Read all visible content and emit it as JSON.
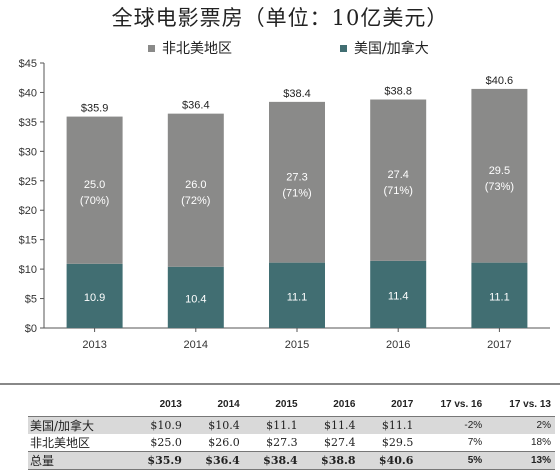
{
  "title": "全球电影票房（单位：10亿美元）",
  "colors": {
    "non_na": "#8a8a89",
    "na": "#416e72",
    "axis": "#555555",
    "grid": "#cccccc"
  },
  "chart_data": {
    "type": "bar",
    "stacked": true,
    "title": "全球电影票房（单位：10亿美元）",
    "categories": [
      "2013",
      "2014",
      "2015",
      "2016",
      "2017"
    ],
    "series": [
      {
        "name": "美国/加拿大",
        "color": "#416e72",
        "values": [
          10.9,
          10.4,
          11.1,
          11.4,
          11.1
        ],
        "labels": [
          "10.9",
          "10.4",
          "11.1",
          "11.4",
          "11.1"
        ]
      },
      {
        "name": "非北美地区",
        "color": "#8a8a89",
        "values": [
          25.0,
          26.0,
          27.3,
          27.4,
          29.5
        ],
        "labels": [
          "25.0",
          "26.0",
          "27.3",
          "27.4",
          "29.5"
        ],
        "share_labels": [
          "(70%)",
          "(72%)",
          "(71%)",
          "(71%)",
          "(73%)"
        ]
      }
    ],
    "totals": [
      "$35.9",
      "$36.4",
      "$38.4",
      "$38.8",
      "$40.6"
    ],
    "total_values": [
      35.9,
      36.4,
      38.4,
      38.8,
      40.6
    ],
    "ylim": [
      0,
      45
    ],
    "yticks": [
      "$0",
      "$5",
      "$10",
      "$15",
      "$20",
      "$25",
      "$30",
      "$35",
      "$40",
      "$45"
    ],
    "ytick_values": [
      0,
      5,
      10,
      15,
      20,
      25,
      30,
      35,
      40,
      45
    ],
    "xlabel": "",
    "ylabel": "",
    "grid": false,
    "legend": {
      "placement": "top",
      "entries": [
        {
          "label": "非北美地区",
          "color": "#8a8a89"
        },
        {
          "label": "美国/加拿大",
          "color": "#416e72"
        }
      ]
    }
  },
  "table": {
    "headers": [
      "",
      "2013",
      "2014",
      "2015",
      "2016",
      "2017",
      "17 vs. 16",
      "17 vs. 13"
    ],
    "rows": [
      [
        "美国/加拿大",
        "$10.9",
        "$10.4",
        "$11.1",
        "$11.4",
        "$11.1",
        "-2%",
        "2%"
      ],
      [
        "非北美地区",
        "$25.0",
        "$26.0",
        "$27.3",
        "$27.4",
        "$29.5",
        "7%",
        "18%"
      ],
      [
        "总量",
        "$35.9",
        "$36.4",
        "$38.4",
        "$38.8",
        "$40.6",
        "5%",
        "13%"
      ]
    ]
  }
}
